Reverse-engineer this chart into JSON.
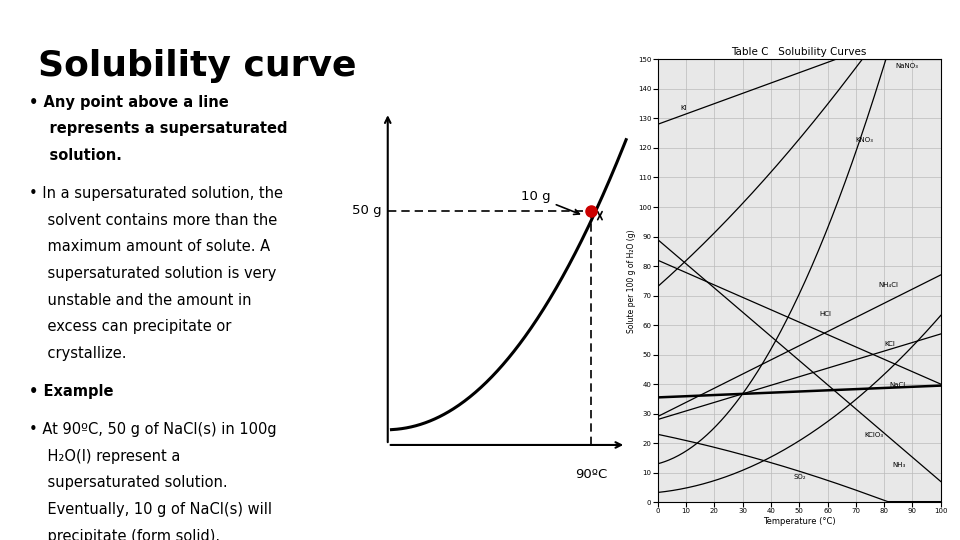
{
  "title": "Solubility curve",
  "background_color": "#ffffff",
  "title_fontsize": 26,
  "bullet_fontsize": 10.5,
  "curve_color": "#000000",
  "dashed_color": "#000000",
  "dot_color": "#cc0000",
  "label_50g": "50 g",
  "label_10g": "10 g",
  "label_90c": "90ºC",
  "table_title": "Table C   Solubility Curves",
  "table_title_fontsize": 7.5
}
